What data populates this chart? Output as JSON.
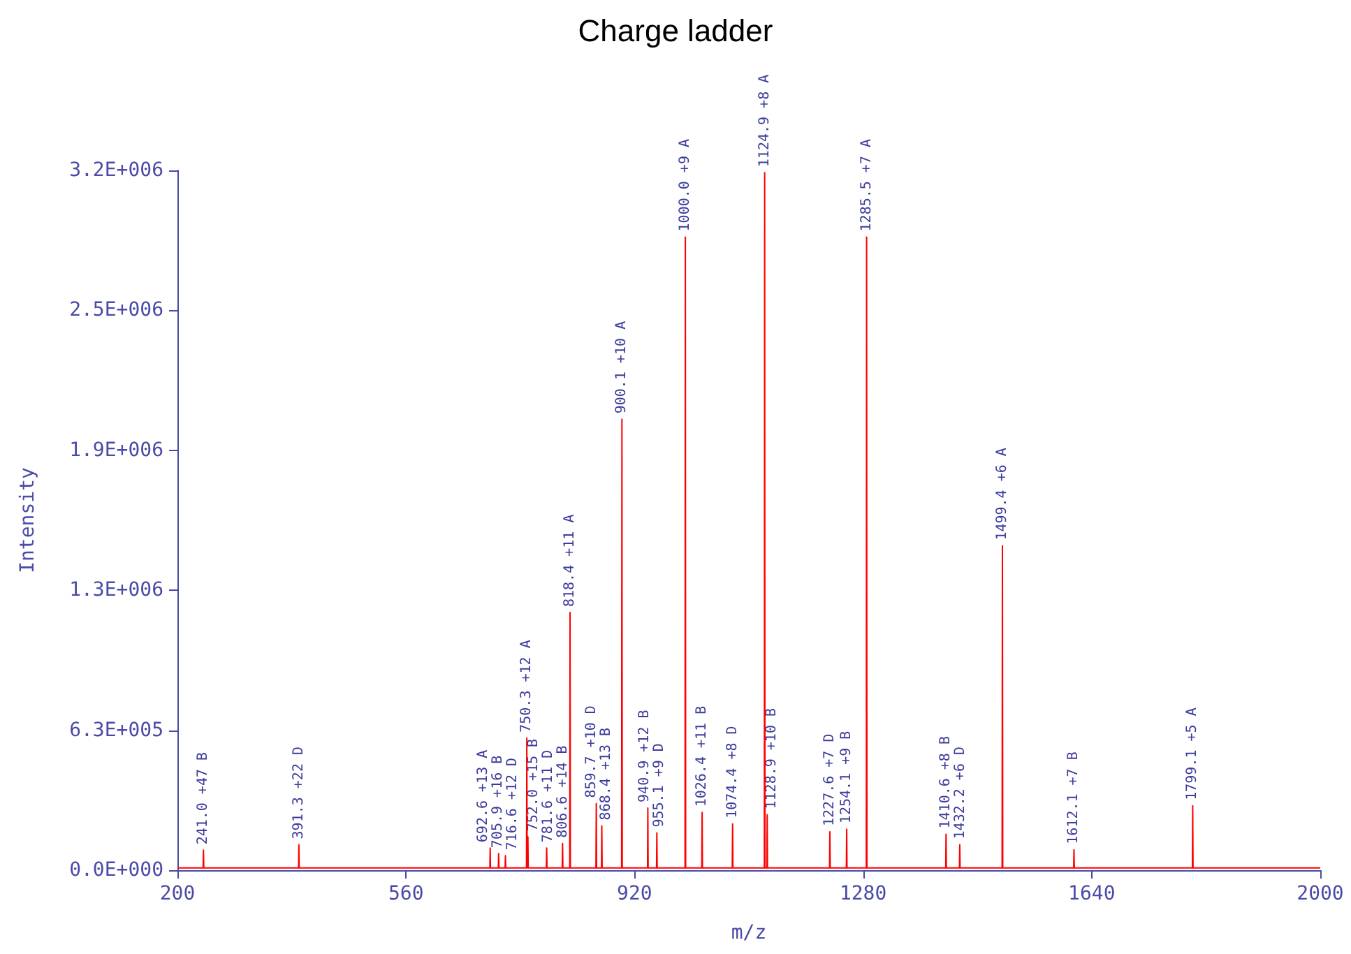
{
  "chart_data": {
    "type": "line",
    "title": "Charge ladder",
    "xlabel": "m/z",
    "ylabel": "Intensity",
    "series": [
      {
        "color": "#ff0000",
        "x": [
          200,
          240.5,
          241.0,
          241.5,
          390.8,
          391.3,
          391.8,
          692.1,
          692.6,
          693.1,
          705.4,
          705.9,
          706.4,
          716.1,
          716.6,
          717.1,
          749.8,
          750.3,
          750.8,
          751.5,
          752.0,
          752.5,
          781.1,
          781.6,
          782.1,
          806.1,
          806.6,
          807.1,
          817.9,
          818.4,
          818.9,
          859.2,
          859.7,
          860.2,
          867.9,
          868.4,
          868.9,
          899.6,
          900.1,
          900.6,
          940.4,
          940.9,
          941.4,
          954.6,
          955.1,
          955.6,
          999.5,
          1000.0,
          1000.5,
          1025.9,
          1026.4,
          1026.9,
          1073.9,
          1074.4,
          1074.9,
          1124.4,
          1124.9,
          1125.4,
          1128.4,
          1128.9,
          1129.4,
          1227.1,
          1227.6,
          1228.1,
          1253.6,
          1254.1,
          1254.6,
          1285.0,
          1285.5,
          1286.0,
          1410.1,
          1410.6,
          1411.1,
          1431.7,
          1432.2,
          1432.7,
          1498.9,
          1499.4,
          1499.9,
          1611.6,
          1612.1,
          1612.6,
          1798.6,
          1799.1,
          1799.6,
          2000
        ],
        "values": [
          10000,
          10000,
          90000,
          10000,
          10000,
          115000,
          10000,
          10000,
          100000,
          10000,
          10000,
          75000,
          10000,
          10000,
          65000,
          10000,
          10000,
          595000,
          10000,
          10000,
          150000,
          10000,
          10000,
          100000,
          10000,
          10000,
          120000,
          10000,
          10000,
          1160000,
          10000,
          10000,
          300000,
          10000,
          10000,
          200000,
          10000,
          10000,
          2030000,
          10000,
          10000,
          280000,
          10000,
          10000,
          168000,
          10000,
          10000,
          2850000,
          10000,
          10000,
          260000,
          10000,
          10000,
          208000,
          10000,
          10000,
          3140000,
          10000,
          10000,
          250000,
          10000,
          10000,
          173000,
          10000,
          10000,
          185000,
          10000,
          10000,
          2850000,
          10000,
          10000,
          162000,
          10000,
          10000,
          115000,
          10000,
          10000,
          1460000,
          10000,
          10000,
          92000,
          10000,
          10000,
          290000,
          10000,
          10000
        ]
      }
    ],
    "annotations": [
      {
        "text": "241.0 +47 B",
        "x": 241.0,
        "y": 90000
      },
      {
        "text": "391.3 +22 D",
        "x": 391.3,
        "y": 115000
      },
      {
        "text": "692.6 +13 A",
        "x": 692.6,
        "y": 100000
      },
      {
        "text": "705.9 +16 B",
        "x": 705.9,
        "y": 75000
      },
      {
        "text": "716.6 +12 D",
        "x": 716.6,
        "y": 65000
      },
      {
        "text": "750.3 +12 A",
        "x": 750.3,
        "y": 595000
      },
      {
        "text": "752.0 +15 B",
        "x": 752.0,
        "y": 150000
      },
      {
        "text": "781.6 +11 D",
        "x": 781.6,
        "y": 100000
      },
      {
        "text": "806.6 +14 B",
        "x": 806.6,
        "y": 120000
      },
      {
        "text": "818.4 +11 A",
        "x": 818.4,
        "y": 1160000
      },
      {
        "text": "859.7 +10 D",
        "x": 859.7,
        "y": 300000
      },
      {
        "text": "868.4 +13 B",
        "x": 868.4,
        "y": 200000
      },
      {
        "text": "900.1 +10 A",
        "x": 900.1,
        "y": 2030000
      },
      {
        "text": "940.9 +12 B",
        "x": 940.9,
        "y": 280000
      },
      {
        "text": "955.1 +9 D",
        "x": 955.1,
        "y": 168000
      },
      {
        "text": "1000.0 +9 A",
        "x": 1000.0,
        "y": 2850000
      },
      {
        "text": "1026.4 +11 B",
        "x": 1026.4,
        "y": 260000
      },
      {
        "text": "1074.4 +8 D",
        "x": 1074.4,
        "y": 208000
      },
      {
        "text": "1124.9 +8 A",
        "x": 1124.9,
        "y": 3140000
      },
      {
        "text": "1128.9 +10 B",
        "x": 1128.9,
        "y": 250000
      },
      {
        "text": "1227.6 +7 D",
        "x": 1227.6,
        "y": 173000
      },
      {
        "text": "1254.1 +9 B",
        "x": 1254.1,
        "y": 185000
      },
      {
        "text": "1285.5 +7 A",
        "x": 1285.5,
        "y": 2850000
      },
      {
        "text": "1410.6 +8 B",
        "x": 1410.6,
        "y": 162000
      },
      {
        "text": "1432.2 +6 D",
        "x": 1432.2,
        "y": 115000
      },
      {
        "text": "1499.4 +6 A",
        "x": 1499.4,
        "y": 1460000
      },
      {
        "text": "1612.1 +7 B",
        "x": 1612.1,
        "y": 92000
      },
      {
        "text": "1799.1 +5 A",
        "x": 1799.1,
        "y": 290000
      }
    ],
    "xlim": [
      200,
      2000
    ],
    "xticks": [
      200,
      560,
      920,
      1280,
      1640,
      2000
    ],
    "ylim": [
      0,
      3150000
    ],
    "yticks": [
      {
        "value": 0,
        "label": "0.0E+000"
      },
      {
        "value": 630000,
        "label": "6.3E+005"
      },
      {
        "value": 1260000,
        "label": "1.3E+006"
      },
      {
        "value": 1890000,
        "label": "1.9E+006"
      },
      {
        "value": 2520000,
        "label": "2.5E+006"
      },
      {
        "value": 3150000,
        "label": "3.2E+006"
      }
    ],
    "grid": false,
    "marker": "none",
    "line_style": "solid"
  }
}
